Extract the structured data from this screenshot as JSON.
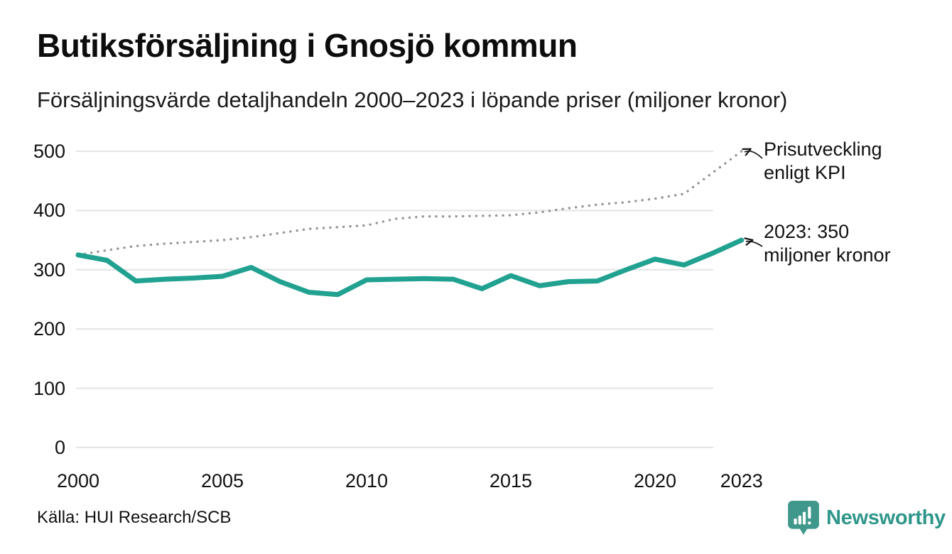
{
  "chart_data": {
    "type": "line",
    "title": "Butiksförsäljning i Gnosjö kommun",
    "subtitle": "Försäljningsvärde detaljhandeln 2000–2023 i löpande priser (miljoner kronor)",
    "x": [
      2000,
      2001,
      2002,
      2003,
      2004,
      2005,
      2006,
      2007,
      2008,
      2009,
      2010,
      2011,
      2012,
      2013,
      2014,
      2015,
      2016,
      2017,
      2018,
      2019,
      2020,
      2021,
      2022,
      2023
    ],
    "series": [
      {
        "name": "Butiksförsäljning (löpande priser, miljoner kronor)",
        "style": "solid",
        "color": "#21a190",
        "values": [
          325,
          316,
          281,
          284,
          286,
          289,
          304,
          280,
          262,
          258,
          283,
          284,
          285,
          284,
          268,
          290,
          273,
          280,
          281,
          300,
          318,
          308,
          328,
          350
        ]
      },
      {
        "name": "Prisutveckling enligt KPI",
        "style": "dotted",
        "color": "#969696",
        "values": [
          325,
          333,
          340,
          344,
          347,
          350,
          355,
          362,
          369,
          372,
          375,
          386,
          390,
          390,
          391,
          392,
          397,
          404,
          410,
          414,
          420,
          428,
          464,
          500
        ]
      }
    ],
    "ylim": [
      0,
      500
    ],
    "yticks": [
      0,
      100,
      200,
      300,
      400,
      500
    ],
    "xticks": [
      2000,
      2005,
      2010,
      2015,
      2020,
      2023
    ],
    "grid": "horizontal-only",
    "legend": "none (direct line annotations with arrows)",
    "annotations": [
      {
        "line1": "Prisutveckling",
        "line2": "enligt KPI",
        "points_to": "dotted KPI line end at 2023"
      },
      {
        "line1": "2023: 350",
        "line2": "miljoner kronor",
        "points_to": "solid sales line end at 2023",
        "value": 350
      }
    ]
  },
  "footer": {
    "source": "Källa: HUI Research/SCB",
    "brand": "Newsworthy"
  },
  "colors": {
    "sales_line": "#21a190",
    "kpi_line": "#969696",
    "grid": "#e4e4e4",
    "text": "#111111",
    "brand": "#2f968a"
  }
}
